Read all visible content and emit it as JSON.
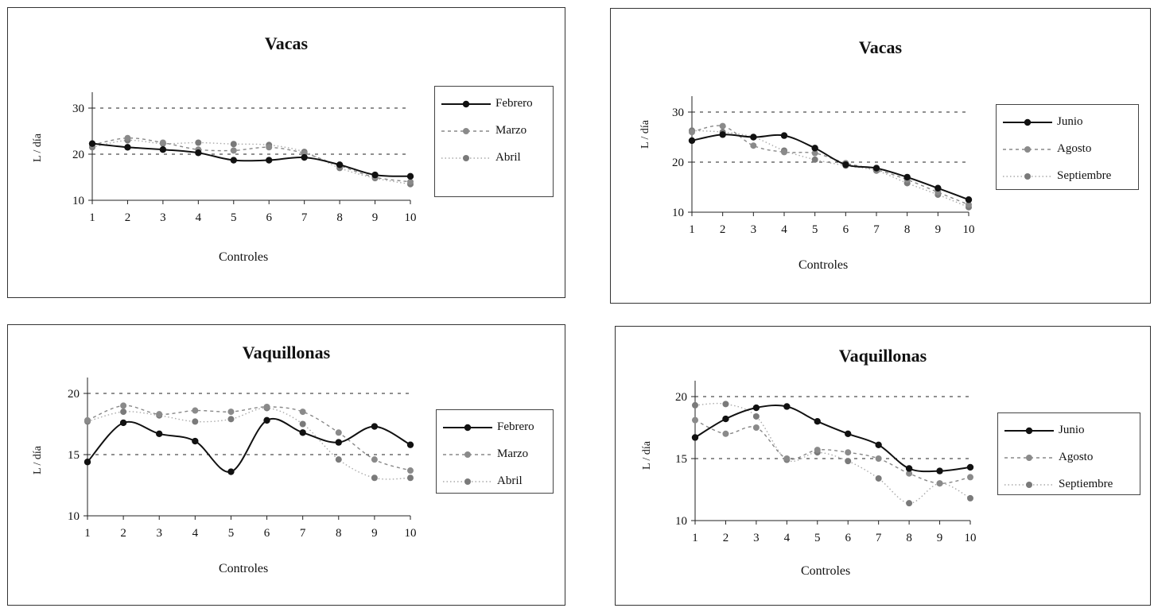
{
  "chart_data": [
    {
      "type": "line",
      "title": "Vacas",
      "xlabel": "Controles",
      "ylabel": "L / día",
      "x": [
        1,
        2,
        3,
        4,
        5,
        6,
        7,
        8,
        9,
        10
      ],
      "ylim": [
        10,
        30
      ],
      "yticks": [
        10,
        20,
        30
      ],
      "grid": "horizontal-dashed",
      "legend_position": "right",
      "series": [
        {
          "name": "Febrero",
          "values": [
            22.3,
            21.5,
            21.0,
            20.3,
            18.7,
            18.7,
            19.3,
            17.7,
            15.5,
            15.2
          ]
        },
        {
          "name": "Marzo",
          "values": [
            22.0,
            23.5,
            22.5,
            21.0,
            20.8,
            21.5,
            20.2,
            17.5,
            15.0,
            14.0
          ]
        },
        {
          "name": "Abril",
          "values": [
            21.5,
            23.0,
            22.3,
            22.5,
            22.2,
            22.0,
            20.5,
            17.0,
            14.8,
            13.5
          ]
        }
      ]
    },
    {
      "type": "line",
      "title": "Vacas",
      "xlabel": "Controles",
      "ylabel": "L / día",
      "x": [
        1,
        2,
        3,
        4,
        5,
        6,
        7,
        8,
        9,
        10
      ],
      "ylim": [
        10,
        30
      ],
      "yticks": [
        10,
        20,
        30
      ],
      "grid": "horizontal-dashed",
      "legend_position": "right",
      "series": [
        {
          "name": "Junio",
          "values": [
            24.3,
            25.5,
            25.0,
            25.3,
            22.8,
            19.5,
            18.8,
            17.0,
            14.8,
            12.5
          ]
        },
        {
          "name": "Agosto",
          "values": [
            26.0,
            27.2,
            23.3,
            22.0,
            21.8,
            19.8,
            18.5,
            16.5,
            14.0,
            11.5
          ]
        },
        {
          "name": "Septiembre",
          "values": [
            26.3,
            26.0,
            25.0,
            22.3,
            20.5,
            19.3,
            18.3,
            15.8,
            13.5,
            11.0
          ]
        }
      ]
    },
    {
      "type": "line",
      "title": "Vaquillonas",
      "xlabel": "Controles",
      "ylabel": "L / día",
      "x": [
        1,
        2,
        3,
        4,
        5,
        6,
        7,
        8,
        9,
        10
      ],
      "ylim": [
        10,
        20
      ],
      "yticks": [
        10,
        15,
        20
      ],
      "grid": "horizontal-dashed",
      "legend_position": "right",
      "series": [
        {
          "name": "Febrero",
          "values": [
            14.4,
            17.6,
            16.7,
            16.1,
            13.6,
            17.8,
            16.8,
            16.0,
            17.3,
            15.8
          ]
        },
        {
          "name": "Marzo",
          "values": [
            17.8,
            19.0,
            18.3,
            18.6,
            18.5,
            18.9,
            18.5,
            16.8,
            14.6,
            13.7
          ]
        },
        {
          "name": "Abril",
          "values": [
            17.7,
            18.5,
            18.2,
            17.7,
            17.9,
            18.8,
            17.5,
            14.6,
            13.1,
            13.1
          ]
        }
      ]
    },
    {
      "type": "line",
      "title": "Vaquillonas",
      "xlabel": "Controles",
      "ylabel": "L / día",
      "x": [
        1,
        2,
        3,
        4,
        5,
        6,
        7,
        8,
        9,
        10
      ],
      "ylim": [
        10,
        20
      ],
      "yticks": [
        10,
        15,
        20
      ],
      "grid": "horizontal-dashed",
      "legend_position": "right",
      "series": [
        {
          "name": "Junio",
          "values": [
            16.7,
            18.2,
            19.1,
            19.2,
            18.0,
            17.0,
            16.1,
            14.2,
            14.0,
            14.3
          ]
        },
        {
          "name": "Agosto",
          "values": [
            18.1,
            17.0,
            17.5,
            15.0,
            15.7,
            15.5,
            15.0,
            13.8,
            13.0,
            13.5
          ]
        },
        {
          "name": "Septiembre",
          "values": [
            19.3,
            19.4,
            18.4,
            14.9,
            15.5,
            14.8,
            13.4,
            11.4,
            13.0,
            11.8
          ]
        }
      ]
    }
  ]
}
